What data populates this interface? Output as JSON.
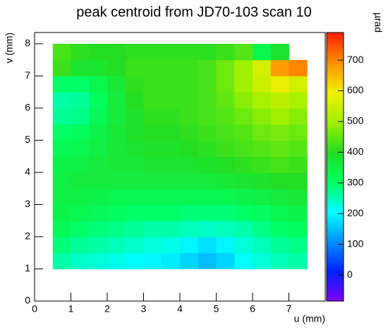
{
  "chart_data": {
    "type": "heatmap",
    "title": "peak centroid from JD70-103 scan 10",
    "xlabel": "u (mm)",
    "ylabel": "v (mm)",
    "zlabel": "µrad",
    "xlim": [
      0,
      8
    ],
    "ylim": [
      0,
      8.35
    ],
    "zlim": [
      -85,
      790
    ],
    "xticks": [
      0,
      1,
      2,
      3,
      4,
      5,
      6,
      7
    ],
    "yticks": [
      0,
      1,
      2,
      3,
      4,
      5,
      6,
      7,
      8
    ],
    "zticks": [
      0,
      100,
      200,
      300,
      400,
      500,
      600,
      700
    ],
    "xbins": [
      0,
      0.5,
      1,
      1.5,
      2,
      2.5,
      3,
      3.5,
      4,
      4.5,
      5,
      5.5,
      6,
      6.5,
      7,
      7.5,
      8
    ],
    "ybins": [
      0,
      0.5,
      1,
      1.5,
      2,
      2.5,
      3,
      3.5,
      4,
      4.5,
      5,
      5.5,
      6,
      6.5,
      7,
      7.5,
      8
    ],
    "colormap": [
      "#8000ff",
      "#0020ff",
      "#0090ff",
      "#00ffff",
      "#00ff60",
      "#22dd22",
      "#a0f000",
      "#f0f000",
      "#ff9000",
      "#ff2000"
    ],
    "z": [
      [
        null,
        null,
        null,
        null,
        null,
        null,
        null,
        null,
        null,
        null,
        null,
        null,
        null,
        null,
        null,
        null
      ],
      [
        null,
        null,
        null,
        null,
        null,
        null,
        null,
        null,
        null,
        null,
        null,
        null,
        null,
        null,
        null,
        null
      ],
      [
        null,
        260,
        240,
        230,
        220,
        210,
        200,
        190,
        170,
        150,
        170,
        210,
        230,
        250,
        260,
        null
      ],
      [
        null,
        290,
        270,
        260,
        250,
        240,
        230,
        220,
        200,
        180,
        200,
        230,
        250,
        270,
        280,
        null
      ],
      [
        null,
        320,
        300,
        290,
        280,
        270,
        260,
        260,
        250,
        240,
        250,
        260,
        280,
        300,
        310,
        null
      ],
      [
        null,
        340,
        330,
        320,
        310,
        300,
        300,
        300,
        290,
        290,
        290,
        300,
        310,
        330,
        340,
        null
      ],
      [
        null,
        350,
        350,
        340,
        330,
        330,
        330,
        330,
        330,
        330,
        330,
        340,
        350,
        360,
        370,
        null
      ],
      [
        null,
        350,
        360,
        360,
        360,
        360,
        360,
        360,
        360,
        360,
        370,
        380,
        390,
        400,
        400,
        null
      ],
      [
        null,
        340,
        350,
        360,
        370,
        370,
        380,
        380,
        380,
        390,
        400,
        410,
        420,
        430,
        420,
        null
      ],
      [
        null,
        320,
        330,
        350,
        370,
        380,
        390,
        390,
        400,
        410,
        420,
        430,
        440,
        450,
        440,
        null
      ],
      [
        null,
        300,
        310,
        340,
        370,
        390,
        400,
        400,
        410,
        420,
        430,
        440,
        460,
        470,
        460,
        null
      ],
      [
        null,
        270,
        280,
        320,
        360,
        390,
        410,
        410,
        420,
        430,
        440,
        460,
        480,
        500,
        480,
        null
      ],
      [
        null,
        260,
        270,
        310,
        360,
        400,
        420,
        420,
        420,
        430,
        450,
        480,
        510,
        530,
        510,
        null
      ],
      [
        null,
        300,
        300,
        330,
        370,
        410,
        420,
        420,
        420,
        430,
        460,
        500,
        550,
        590,
        560,
        null
      ],
      [
        null,
        420,
        380,
        380,
        400,
        420,
        420,
        420,
        420,
        430,
        460,
        500,
        560,
        680,
        700,
        null
      ],
      [
        null,
        430,
        410,
        400,
        400,
        410,
        410,
        410,
        410,
        410,
        420,
        440,
        330,
        380,
        null,
        null
      ]
    ]
  }
}
